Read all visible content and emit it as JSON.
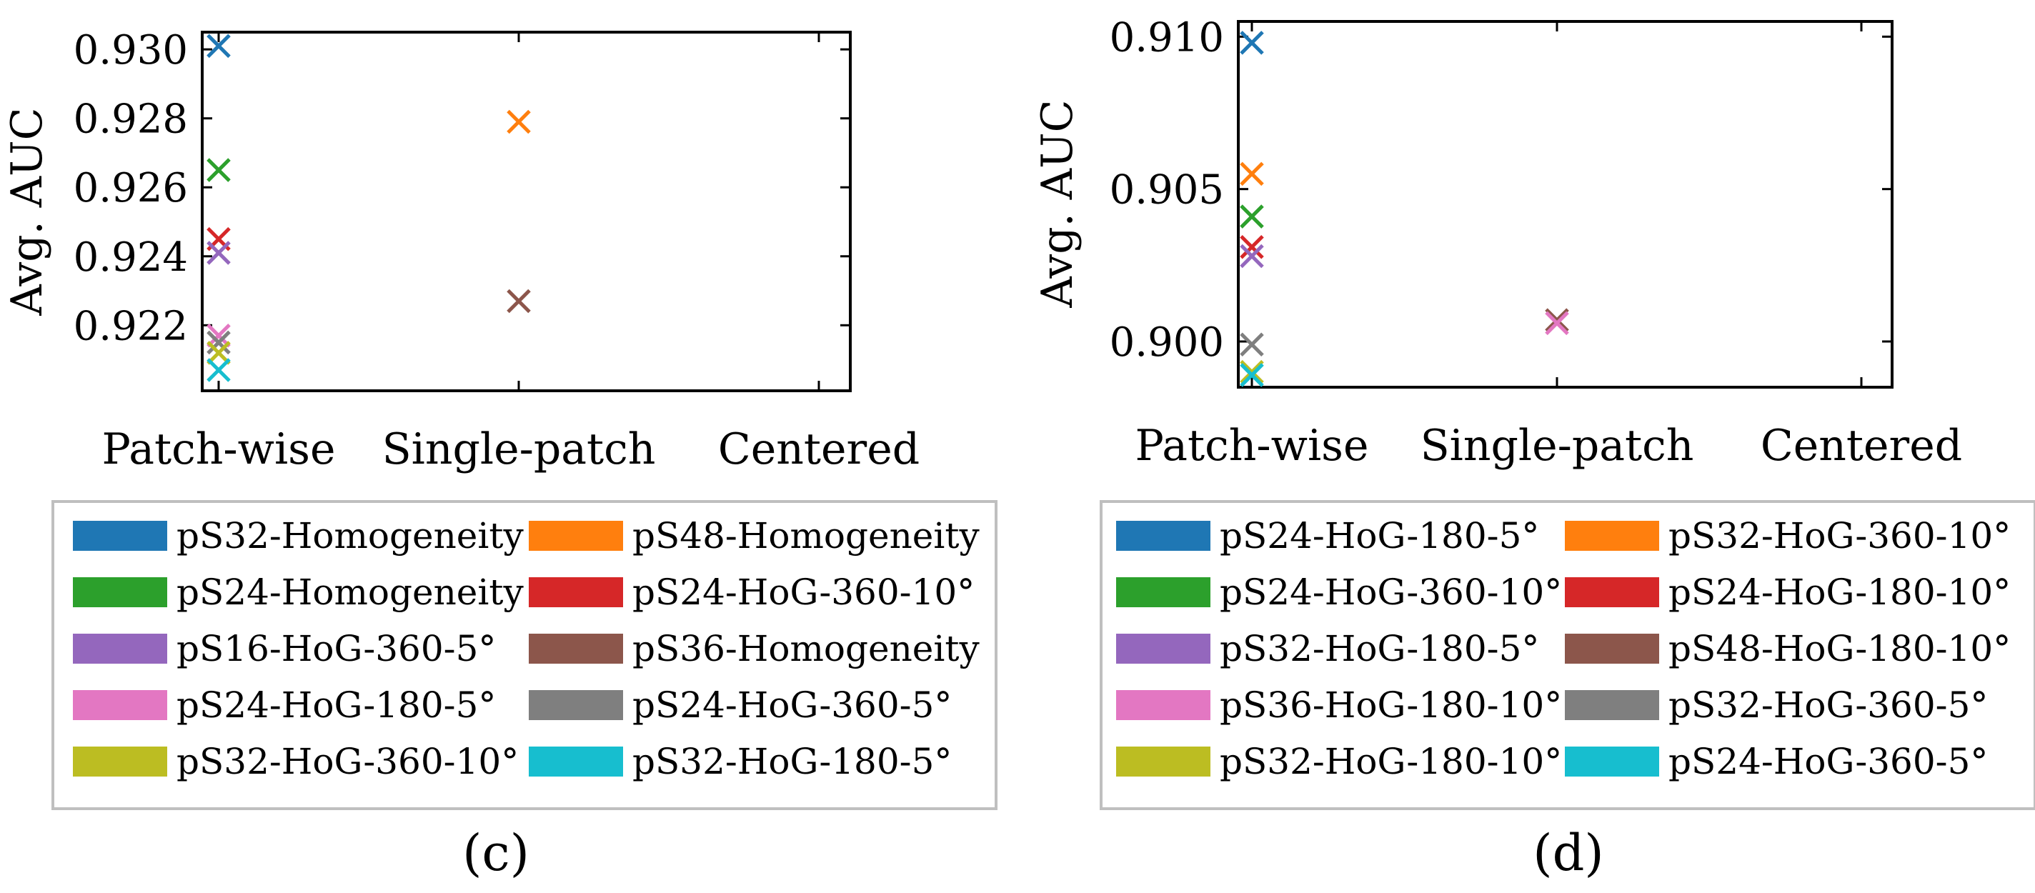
{
  "chart_data": [
    {
      "panel_label": "(c)",
      "type": "scatter",
      "title": "",
      "xlabel": "",
      "ylabel": "Avg. AUC",
      "categories": [
        "Patch-wise",
        "Single-patch",
        "Centered"
      ],
      "ylim": [
        0.9201,
        0.9305
      ],
      "yticks": [
        "0.922",
        "0.924",
        "0.926",
        "0.928",
        "0.930"
      ],
      "ytick_values": [
        0.922,
        0.924,
        0.926,
        0.928,
        0.93
      ],
      "marker": "x",
      "grid": false,
      "legend_position": "bottom",
      "series": [
        {
          "name": "pS32-Homogeneity",
          "color": "#1f77b4",
          "values": [
            0.9301,
            null,
            null
          ]
        },
        {
          "name": "pS48-Homogeneity",
          "color": "#ff7f0e",
          "values": [
            null,
            0.9279,
            null
          ]
        },
        {
          "name": "pS24-Homogeneity",
          "color": "#2ca02c",
          "values": [
            0.9265,
            null,
            null
          ]
        },
        {
          "name": "pS24-HoG-360-10°",
          "color": "#d62728",
          "values": [
            0.9245,
            null,
            null
          ]
        },
        {
          "name": "pS16-HoG-360-5°",
          "color": "#9467bd",
          "values": [
            0.9241,
            null,
            null
          ]
        },
        {
          "name": "pS36-Homogeneity",
          "color": "#8c564b",
          "values": [
            null,
            0.9227,
            null
          ]
        },
        {
          "name": "pS24-HoG-180-5°",
          "color": "#e377c2",
          "values": [
            0.9217,
            null,
            null
          ]
        },
        {
          "name": "pS24-HoG-360-5°",
          "color": "#7f7f7f",
          "values": [
            0.9215,
            null,
            null
          ]
        },
        {
          "name": "pS32-HoG-360-10°",
          "color": "#bcbd22",
          "values": [
            0.9212,
            null,
            null
          ]
        },
        {
          "name": "pS32-HoG-180-5°",
          "color": "#17becf",
          "values": [
            0.9207,
            null,
            null
          ]
        }
      ]
    },
    {
      "panel_label": "(d)",
      "type": "scatter",
      "title": "",
      "xlabel": "",
      "ylabel": "Avg. AUC",
      "categories": [
        "Patch-wise",
        "Single-patch",
        "Centered"
      ],
      "ylim": [
        0.8985,
        0.9105
      ],
      "yticks": [
        "0.900",
        "0.905",
        "0.910"
      ],
      "ytick_values": [
        0.9,
        0.905,
        0.91
      ],
      "marker": "x",
      "grid": false,
      "legend_position": "bottom",
      "series": [
        {
          "name": "pS24-HoG-180-5°",
          "color": "#1f77b4",
          "values": [
            0.9098,
            null,
            null
          ]
        },
        {
          "name": "pS32-HoG-360-10°",
          "color": "#ff7f0e",
          "values": [
            0.9055,
            null,
            null
          ]
        },
        {
          "name": "pS24-HoG-360-10°",
          "color": "#2ca02c",
          "values": [
            0.9041,
            null,
            null
          ]
        },
        {
          "name": "pS24-HoG-180-10°",
          "color": "#d62728",
          "values": [
            0.9031,
            null,
            null
          ]
        },
        {
          "name": "pS32-HoG-180-5°",
          "color": "#9467bd",
          "values": [
            0.9028,
            null,
            null
          ]
        },
        {
          "name": "pS48-HoG-180-10°",
          "color": "#8c564b",
          "values": [
            null,
            0.9007,
            null
          ]
        },
        {
          "name": "pS36-HoG-180-10°",
          "color": "#e377c2",
          "values": [
            null,
            0.9006,
            null
          ]
        },
        {
          "name": "pS32-HoG-360-5°",
          "color": "#7f7f7f",
          "values": [
            0.8999,
            null,
            null
          ]
        },
        {
          "name": "pS32-HoG-180-10°",
          "color": "#bcbd22",
          "values": [
            0.899,
            null,
            null
          ]
        },
        {
          "name": "pS24-HoG-360-5°",
          "color": "#17becf",
          "values": [
            0.8989,
            null,
            null
          ]
        }
      ]
    }
  ]
}
